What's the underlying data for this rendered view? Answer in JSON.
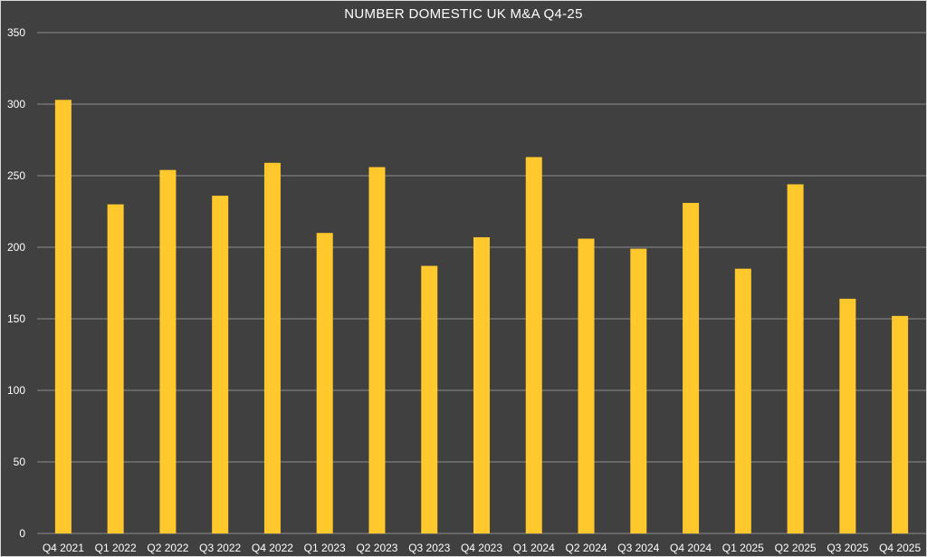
{
  "chart_data": {
    "type": "bar",
    "title": "NUMBER DOMESTIC UK M&A Q4-25",
    "xlabel": "",
    "ylabel": "",
    "categories": [
      "Q4 2021",
      "Q1 2022",
      "Q2 2022",
      "Q3 2022",
      "Q4 2022",
      "Q1 2023",
      "Q2 2023",
      "Q3 2023",
      "Q4 2023",
      "Q1 2024",
      "Q2 2024",
      "Q3 2024",
      "Q4 2024",
      "Q1 2025",
      "Q2 2025",
      "Q3 2025",
      "Q4 2025"
    ],
    "values": [
      303,
      230,
      254,
      236,
      259,
      210,
      256,
      187,
      207,
      263,
      206,
      199,
      231,
      185,
      244,
      164,
      152
    ],
    "ylim": [
      0,
      350
    ],
    "yticks": [
      0,
      50,
      100,
      150,
      200,
      250,
      300,
      350
    ],
    "grid": true,
    "legend": "none",
    "colors": {
      "bar": "#ffc82c",
      "background": "#404040",
      "grid": "#8c8c8c",
      "text": "#ffffff"
    }
  }
}
